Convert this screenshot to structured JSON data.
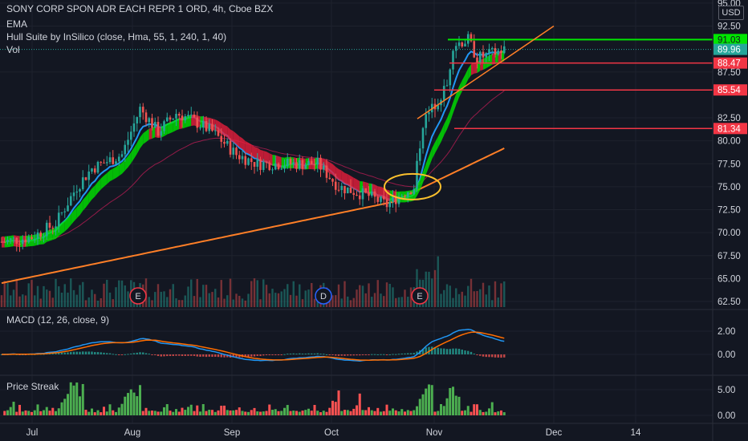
{
  "header": {
    "symbol_title": "SONY CORP SPON ADR EACH REPR 1 ORD, 4h, Cboe BZX",
    "indicator_ema": "EMA",
    "indicator_hull": "Hull Suite by InSilico (close, Hma, 55, 1, 240, 1, 40)",
    "indicator_vol": "Vol",
    "currency": "USD"
  },
  "price_axis": {
    "ticks": [
      "95.00",
      "92.50",
      "87.50",
      "82.50",
      "80.00",
      "77.50",
      "75.00",
      "72.50",
      "70.00",
      "67.50",
      "65.00",
      "62.50"
    ],
    "tick_values": [
      95,
      92.5,
      87.5,
      82.5,
      80,
      77.5,
      75,
      72.5,
      70,
      67.5,
      65,
      62.5
    ]
  },
  "price_tags": [
    {
      "label": "91.03",
      "value": 91.03,
      "color": "#00e600",
      "text_color": "#131722"
    },
    {
      "label": "89.96",
      "value": 89.96,
      "color": "#26a69a",
      "text_color": "#ffffff"
    },
    {
      "label": "88.47",
      "value": 88.47,
      "color": "#f23645",
      "text_color": "#ffffff"
    },
    {
      "label": "85.54",
      "value": 85.54,
      "color": "#f23645",
      "text_color": "#ffffff"
    },
    {
      "label": "81.34",
      "value": 81.34,
      "color": "#f23645",
      "text_color": "#ffffff"
    }
  ],
  "macd": {
    "label": "MACD (12, 26, close, 9)",
    "ticks": [
      "2.00",
      "0.00"
    ],
    "tick_values": [
      2,
      0
    ]
  },
  "streak": {
    "label": "Price Streak",
    "ticks": [
      "5.00",
      "0.00"
    ],
    "tick_values": [
      5,
      0
    ]
  },
  "time_axis": {
    "labels": [
      "Jul",
      "Aug",
      "Sep",
      "Oct",
      "Nov",
      "Dec",
      "14"
    ]
  },
  "events": [
    {
      "letter": "E",
      "color": "#f23645"
    },
    {
      "letter": "D",
      "color": "#2962ff"
    },
    {
      "letter": "E",
      "color": "#f23645"
    }
  ],
  "colors": {
    "background": "#131722",
    "grid": "#1e222d",
    "up": "#26a69a",
    "down": "#ef5350",
    "ema_orange": "#ff7f27",
    "ema_blue": "#2196f3",
    "hull_green": "#00e600",
    "hull_red": "#e91e3c",
    "macd_line": "#2196f3",
    "signal_line": "#ff6d00"
  }
}
